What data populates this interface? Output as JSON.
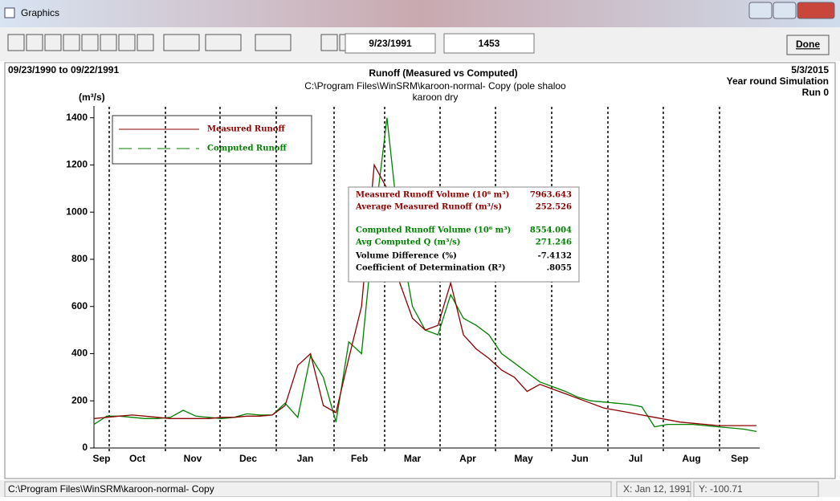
{
  "window": {
    "title": "Graphics"
  },
  "toolbar": {
    "date": "9/23/1991",
    "count": "1453",
    "done": "Done"
  },
  "header": {
    "period": "09/23/1990 to 09/22/1991",
    "date": "5/3/2015",
    "mode": "Year round Simulation",
    "run": "Run 0",
    "subtitle": [
      "C:\\Program Files\\WinSRM\\karoon-normal- Copy (pole shaloo",
      "karoon dry"
    ]
  },
  "stats": {
    "rows": [
      {
        "label": "Measured Runoff Volume (10⁶ m³)",
        "value": "7963.643",
        "color": "#8b0000"
      },
      {
        "label": "Average Measured Runoff  (m³/s)",
        "value": "252.526",
        "color": "#8b0000"
      },
      {
        "label": "Computed Runoff Volume (10⁶ m³)",
        "value": "8554.004",
        "color": "#008000"
      },
      {
        "label": "Avg Computed Q   (m³/s)",
        "value": "271.246",
        "color": "#008000"
      },
      {
        "label": "Volume Difference (%)",
        "value": "-7.4132",
        "color": "#000000"
      },
      {
        "label": "Coefficient of Determination (R²)",
        "value": ".8055",
        "color": "#000000"
      }
    ]
  },
  "status": {
    "path": "C:\\Program Files\\WinSRM\\karoon-normal- Copy",
    "x": "X: Jan 12, 1991",
    "y": "Y: -100.71"
  },
  "chart_data": {
    "type": "line",
    "title": "Runoff (Measured vs Computed)",
    "y_label": "(m³/s)",
    "x_labels": [
      "Sep",
      "Oct",
      "Nov",
      "Dec",
      "Jan",
      "Feb",
      "Mar",
      "Apr",
      "May",
      "Jun",
      "Jul",
      "Aug",
      "Sep"
    ],
    "ylim": [
      0,
      1450
    ],
    "yticks": [
      0,
      200,
      400,
      600,
      800,
      1000,
      1200,
      1400
    ],
    "series": [
      {
        "name": "Measured Runoff",
        "color": "#8b0000",
        "values": [
          125,
          130,
          135,
          140,
          135,
          130,
          125,
          125,
          125,
          125,
          130,
          130,
          135,
          135,
          140,
          180,
          350,
          400,
          180,
          150,
          380,
          600,
          1200,
          1100,
          700,
          550,
          500,
          520,
          700,
          480,
          420,
          380,
          330,
          300,
          240,
          270,
          250,
          230,
          210,
          190,
          170,
          160,
          150,
          140,
          130,
          120,
          110,
          105,
          100,
          95,
          95,
          95,
          95
        ]
      },
      {
        "name": "Computed Runoff",
        "color": "#008000",
        "values": [
          100,
          135,
          135,
          130,
          125,
          125,
          130,
          160,
          135,
          130,
          125,
          130,
          145,
          140,
          140,
          190,
          130,
          390,
          300,
          110,
          450,
          400,
          950,
          1400,
          900,
          600,
          500,
          480,
          650,
          550,
          520,
          480,
          400,
          360,
          320,
          280,
          260,
          240,
          215,
          200,
          195,
          190,
          185,
          175,
          90,
          100,
          100,
          100,
          95,
          90,
          85,
          80,
          70
        ]
      }
    ]
  }
}
